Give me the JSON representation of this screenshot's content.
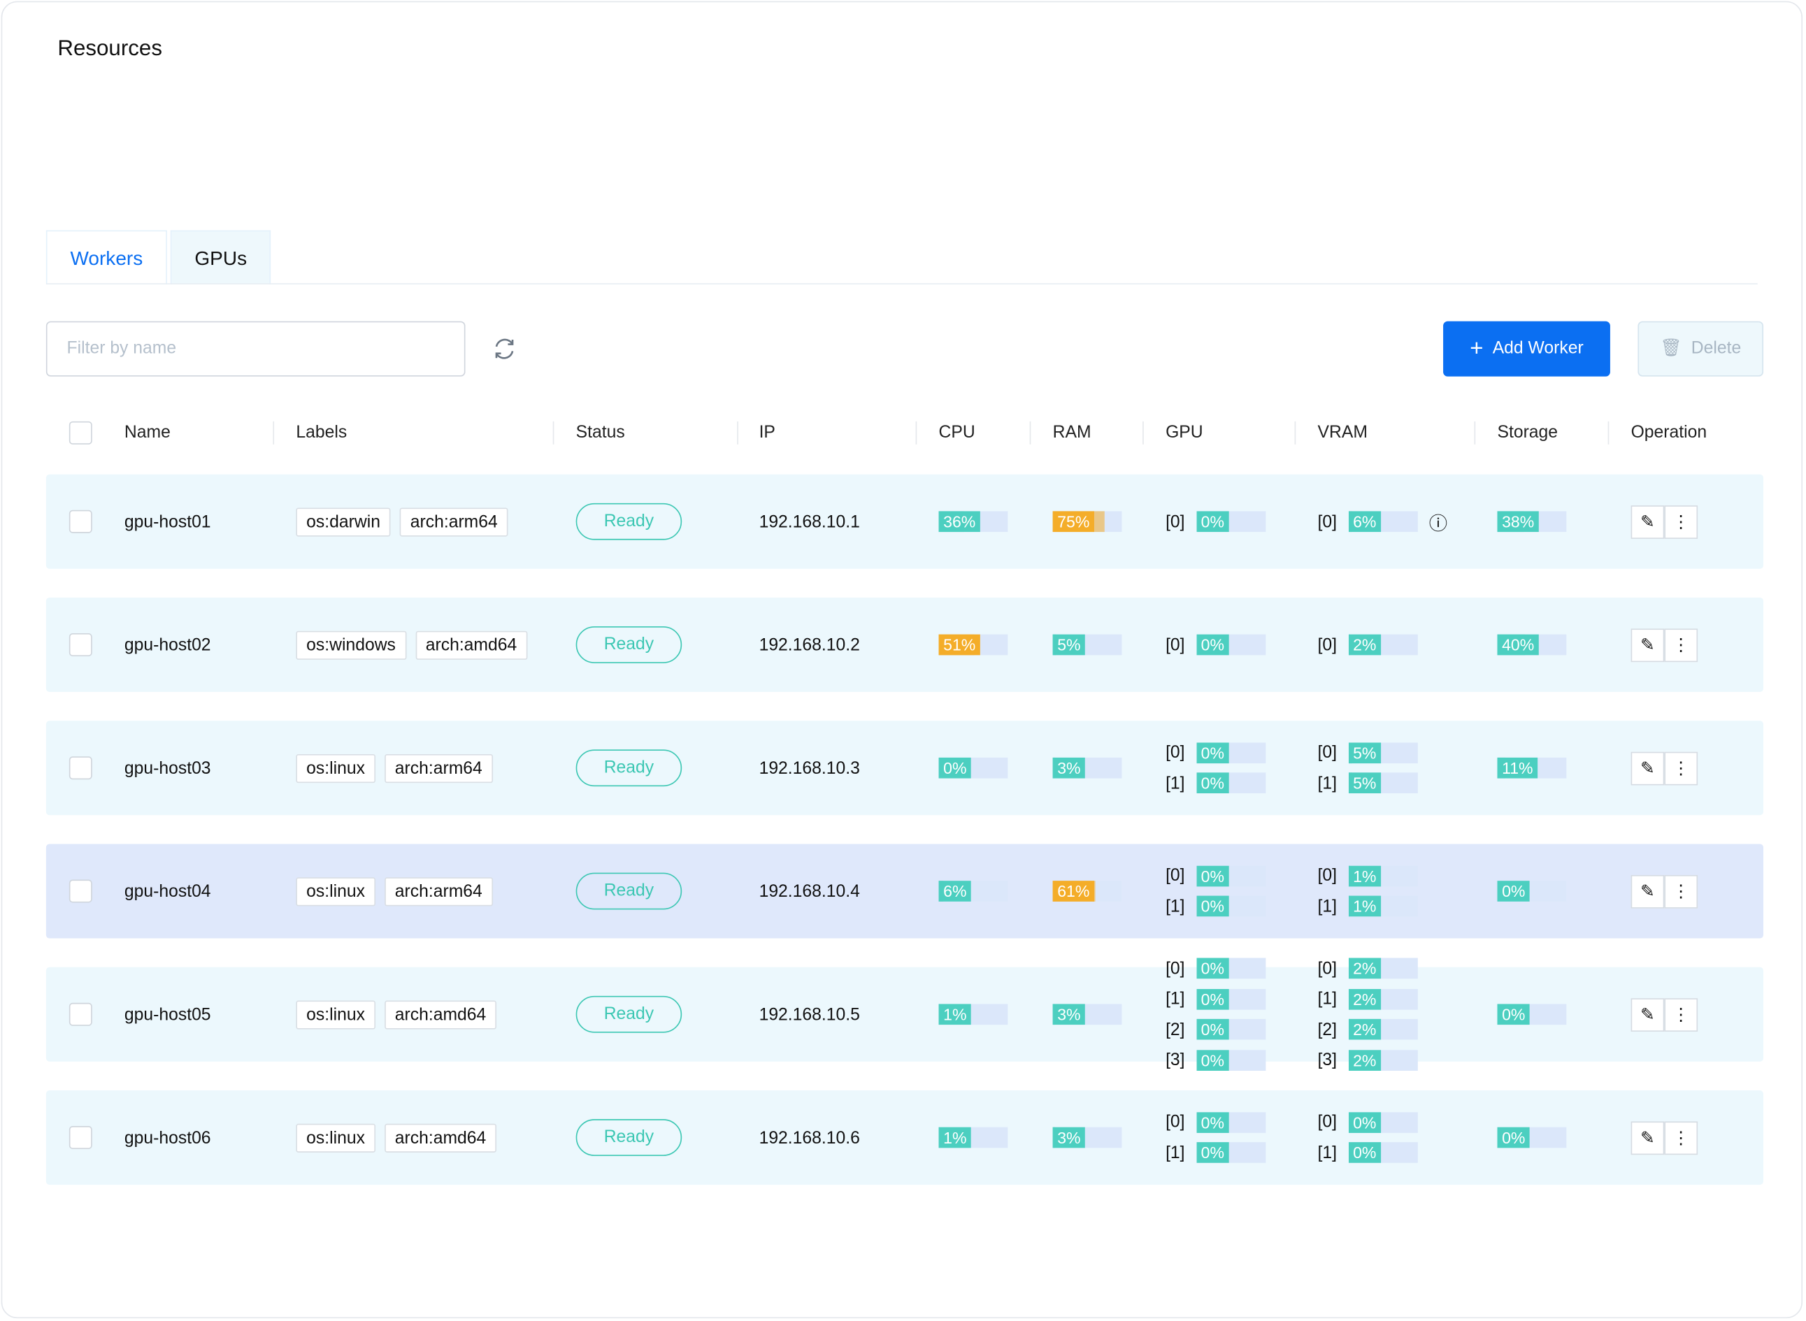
{
  "header": {
    "title": "Resources"
  },
  "tabs": [
    "Workers",
    "GPUs"
  ],
  "toolbar": {
    "filter_placeholder": "Filter by name",
    "add_button": "Add Worker",
    "delete_button": "Delete"
  },
  "table": {
    "columns": [
      "Name",
      "Labels",
      "Status",
      "IP",
      "CPU",
      "RAM",
      "GPU",
      "VRAM",
      "Storage",
      "Operation"
    ],
    "rows": [
      {
        "name": "gpu-host01",
        "labels": [
          "os:darwin",
          "arch:arm64"
        ],
        "status": "Ready",
        "ip": "192.168.10.1",
        "cpu": {
          "value": 36,
          "label": "36%"
        },
        "ram": {
          "value": 75,
          "label": "75%"
        },
        "gpu": [
          {
            "index": "[0]",
            "value": 0,
            "label": "0%"
          }
        ],
        "vram": [
          {
            "index": "[0]",
            "value": 6,
            "label": "6%"
          }
        ],
        "storage": {
          "value": 38,
          "label": "38%"
        }
      },
      {
        "name": "gpu-host02",
        "labels": [
          "os:windows",
          "arch:amd64"
        ],
        "status": "Ready",
        "ip": "192.168.10.2",
        "cpu": {
          "value": 51,
          "label": "51%"
        },
        "ram": {
          "value": 5,
          "label": "5%"
        },
        "gpu": [
          {
            "index": "[0]",
            "value": 0,
            "label": "0%"
          }
        ],
        "vram": [
          {
            "index": "[0]",
            "value": 2,
            "label": "2%"
          }
        ],
        "storage": {
          "value": 40,
          "label": "40%"
        }
      },
      {
        "name": "gpu-host03",
        "labels": [
          "os:linux",
          "arch:arm64"
        ],
        "status": "Ready",
        "ip": "192.168.10.3",
        "cpu": {
          "value": 0,
          "label": "0%"
        },
        "ram": {
          "value": 3,
          "label": "3%"
        },
        "gpu": [
          {
            "index": "[0]",
            "value": 0,
            "label": "0%"
          },
          {
            "index": "[1]",
            "value": 0,
            "label": "0%"
          }
        ],
        "vram": [
          {
            "index": "[0]",
            "value": 5,
            "label": "5%"
          },
          {
            "index": "[1]",
            "value": 5,
            "label": "5%"
          }
        ],
        "storage": {
          "value": 11,
          "label": "11%"
        }
      },
      {
        "name": "gpu-host04",
        "labels": [
          "os:linux",
          "arch:arm64"
        ],
        "status": "Ready",
        "ip": "192.168.10.4",
        "cpu": {
          "value": 6,
          "label": "6%"
        },
        "ram": {
          "value": 61,
          "label": "61%"
        },
        "gpu": [
          {
            "index": "[0]",
            "value": 0,
            "label": "0%"
          },
          {
            "index": "[1]",
            "value": 0,
            "label": "0%"
          }
        ],
        "vram": [
          {
            "index": "[0]",
            "value": 1,
            "label": "1%"
          },
          {
            "index": "[1]",
            "value": 1,
            "label": "1%"
          }
        ],
        "storage": {
          "value": 0,
          "label": "0%"
        }
      },
      {
        "name": "gpu-host05",
        "labels": [
          "os:linux",
          "arch:amd64"
        ],
        "status": "Ready",
        "ip": "192.168.10.5",
        "cpu": {
          "value": 1,
          "label": "1%"
        },
        "ram": {
          "value": 3,
          "label": "3%"
        },
        "gpu": [
          {
            "index": "[0]",
            "value": 0,
            "label": "0%"
          },
          {
            "index": "[1]",
            "value": 0,
            "label": "0%"
          },
          {
            "index": "[2]",
            "value": 0,
            "label": "0%"
          },
          {
            "index": "[3]",
            "value": 0,
            "label": "0%"
          }
        ],
        "vram": [
          {
            "index": "[0]",
            "value": 2,
            "label": "2%"
          },
          {
            "index": "[1]",
            "value": 2,
            "label": "2%"
          },
          {
            "index": "[2]",
            "value": 2,
            "label": "2%"
          },
          {
            "index": "[3]",
            "value": 2,
            "label": "2%"
          }
        ],
        "storage": {
          "value": 0,
          "label": "0%"
        }
      },
      {
        "name": "gpu-host06",
        "labels": [
          "os:linux",
          "arch:amd64"
        ],
        "status": "Ready",
        "ip": "192.168.10.6",
        "cpu": {
          "value": 1,
          "label": "1%"
        },
        "ram": {
          "value": 3,
          "label": "3%"
        },
        "gpu": [
          {
            "index": "[0]",
            "value": 0,
            "label": "0%"
          },
          {
            "index": "[1]",
            "value": 0,
            "label": "0%"
          }
        ],
        "vram": [
          {
            "index": "[0]",
            "value": 0,
            "label": "0%"
          },
          {
            "index": "[1]",
            "value": 0,
            "label": "0%"
          }
        ],
        "storage": {
          "value": 0,
          "label": "0%"
        }
      }
    ]
  }
}
